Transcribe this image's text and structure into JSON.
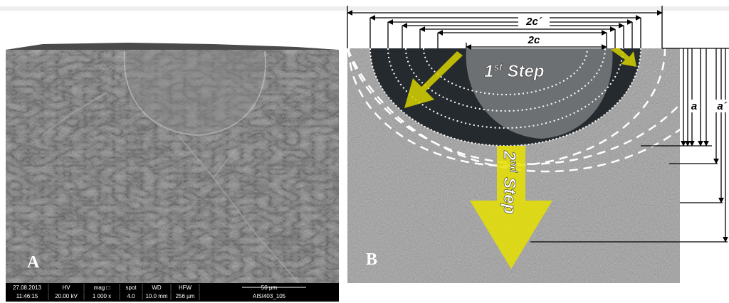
{
  "panel_a": {
    "label": "A",
    "info_bar": {
      "top": [
        "27.08.2013",
        "HV",
        "mag □",
        "spot",
        "WD",
        "HFW",
        "50 µm"
      ],
      "bottom": [
        "11:46:15",
        "20.00 kV",
        "1 000 x",
        "4.0",
        "10.0 mm",
        "256 µm",
        "AISI403_105"
      ]
    }
  },
  "panel_b": {
    "label": "B",
    "width_outer": "2c´",
    "width_inner": "2c",
    "depth_inner": "a",
    "depth_outer": "a´",
    "first_step": {
      "number": "1",
      "suffix": "st",
      "word": " Step"
    },
    "second_step": {
      "number": "2",
      "suffix": "nd",
      "word": " Step"
    }
  }
}
